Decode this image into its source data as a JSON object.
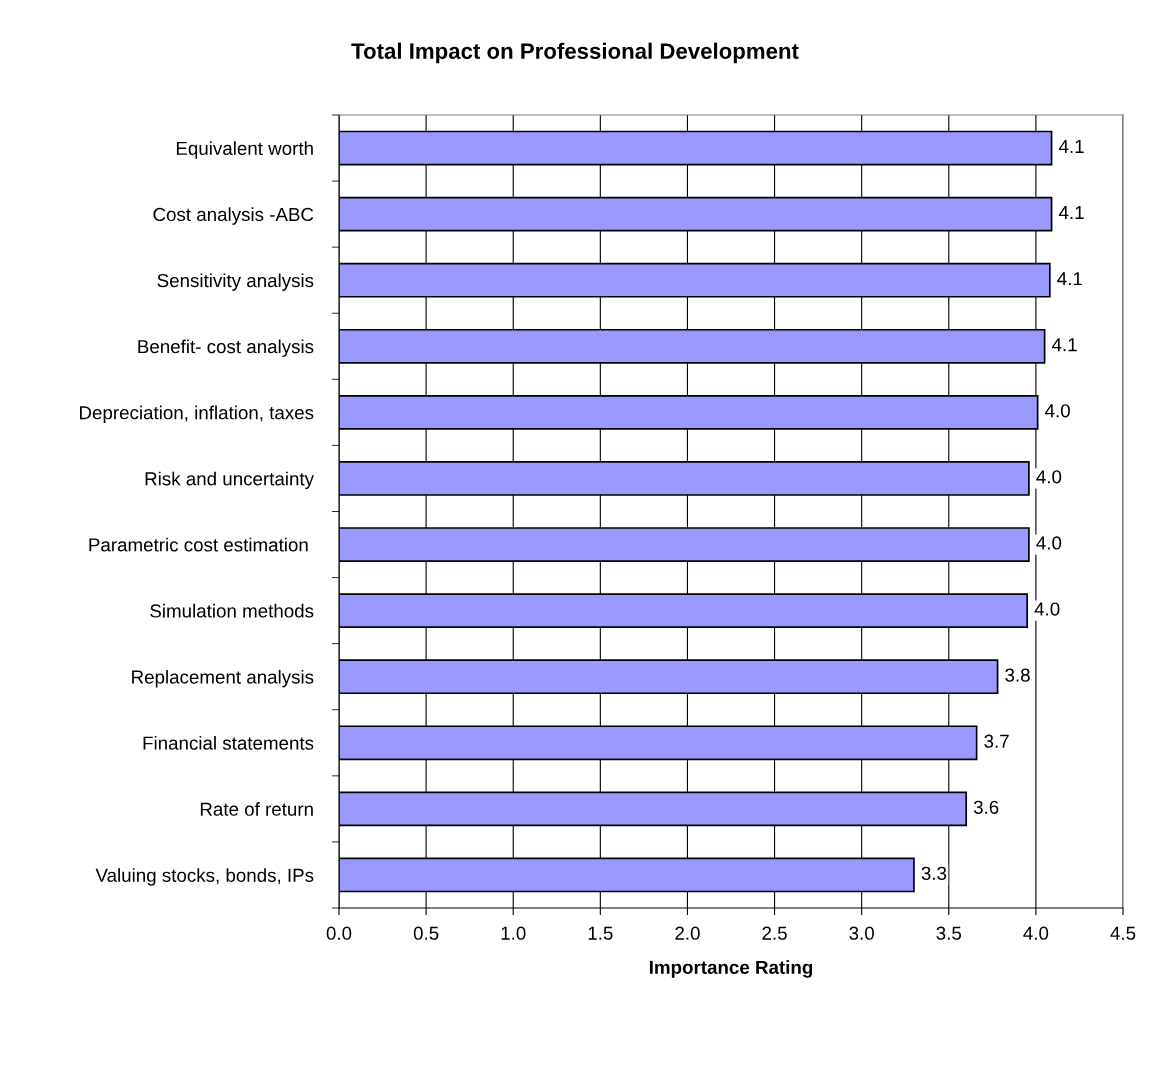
{
  "chart_data": {
    "type": "bar",
    "orientation": "horizontal",
    "title": "Total Impact on Professional Development",
    "xlabel": "Importance Rating",
    "categories": [
      "Equivalent worth",
      "Cost analysis -ABC",
      "Sensitivity analysis",
      "Benefit- cost analysis",
      "Depreciation, inflation, taxes",
      "Risk and uncertainty",
      "Parametric cost estimation ",
      "Simulation methods",
      "Replacement analysis",
      "Financial statements",
      "Rate of return",
      "Valuing stocks, bonds, IPs"
    ],
    "values": [
      4.09,
      4.09,
      4.08,
      4.05,
      4.01,
      3.96,
      3.96,
      3.95,
      3.78,
      3.66,
      3.6,
      3.3
    ],
    "value_labels": [
      "4.1",
      "4.1",
      "4.1",
      "4.1",
      "4.0",
      "4.0",
      "4.0",
      "4.0",
      "3.8",
      "3.7",
      "3.6",
      "3.3"
    ],
    "color": "#9999ff",
    "xlim": [
      0,
      4.5
    ],
    "xticks": [
      {
        "value": 0,
        "label": "0.0"
      },
      {
        "value": 0.5,
        "label": "0.5"
      },
      {
        "value": 1,
        "label": "1.0"
      },
      {
        "value": 1.5,
        "label": "1.5"
      },
      {
        "value": 2,
        "label": "2.0"
      },
      {
        "value": 2.5,
        "label": "2.5"
      },
      {
        "value": 3,
        "label": "3.0"
      },
      {
        "value": 3.5,
        "label": "3.5"
      },
      {
        "value": 4,
        "label": "4.0"
      },
      {
        "value": 4.5,
        "label": "4.5"
      }
    ],
    "grid": "x",
    "legend": false
  }
}
